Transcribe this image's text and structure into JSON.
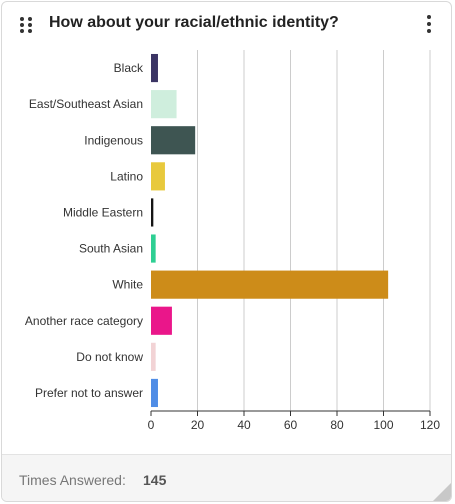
{
  "widget": {
    "title": "How about your racial/ethnic identity?",
    "footer_label": "Times Answered:",
    "footer_value": "145"
  },
  "icons": {
    "drag": "drag-handle-icon",
    "menu": "more-vertical-icon",
    "resize": "resize-handle-icon"
  },
  "chart_data": {
    "type": "bar",
    "orientation": "horizontal",
    "title": "",
    "xlabel": "",
    "ylabel": "",
    "categories": [
      "Black",
      "East/Southeast Asian",
      "Indigenous",
      "Latino",
      "Middle Eastern",
      "South Asian",
      "White",
      "Another race category",
      "Do not know",
      "Prefer not to answer"
    ],
    "values": [
      3,
      11,
      19,
      6,
      1,
      2,
      102,
      9,
      2,
      3
    ],
    "colors": [
      "#3b3464",
      "#cfeedd",
      "#3e5552",
      "#e8c93c",
      "#151515",
      "#2ecf93",
      "#cd8c19",
      "#ea168a",
      "#f2d3d5",
      "#4f8de6"
    ],
    "xlim": [
      0,
      120
    ],
    "xticks": [
      0,
      20,
      40,
      60,
      80,
      100,
      120
    ],
    "grid": true,
    "legend": "none"
  }
}
